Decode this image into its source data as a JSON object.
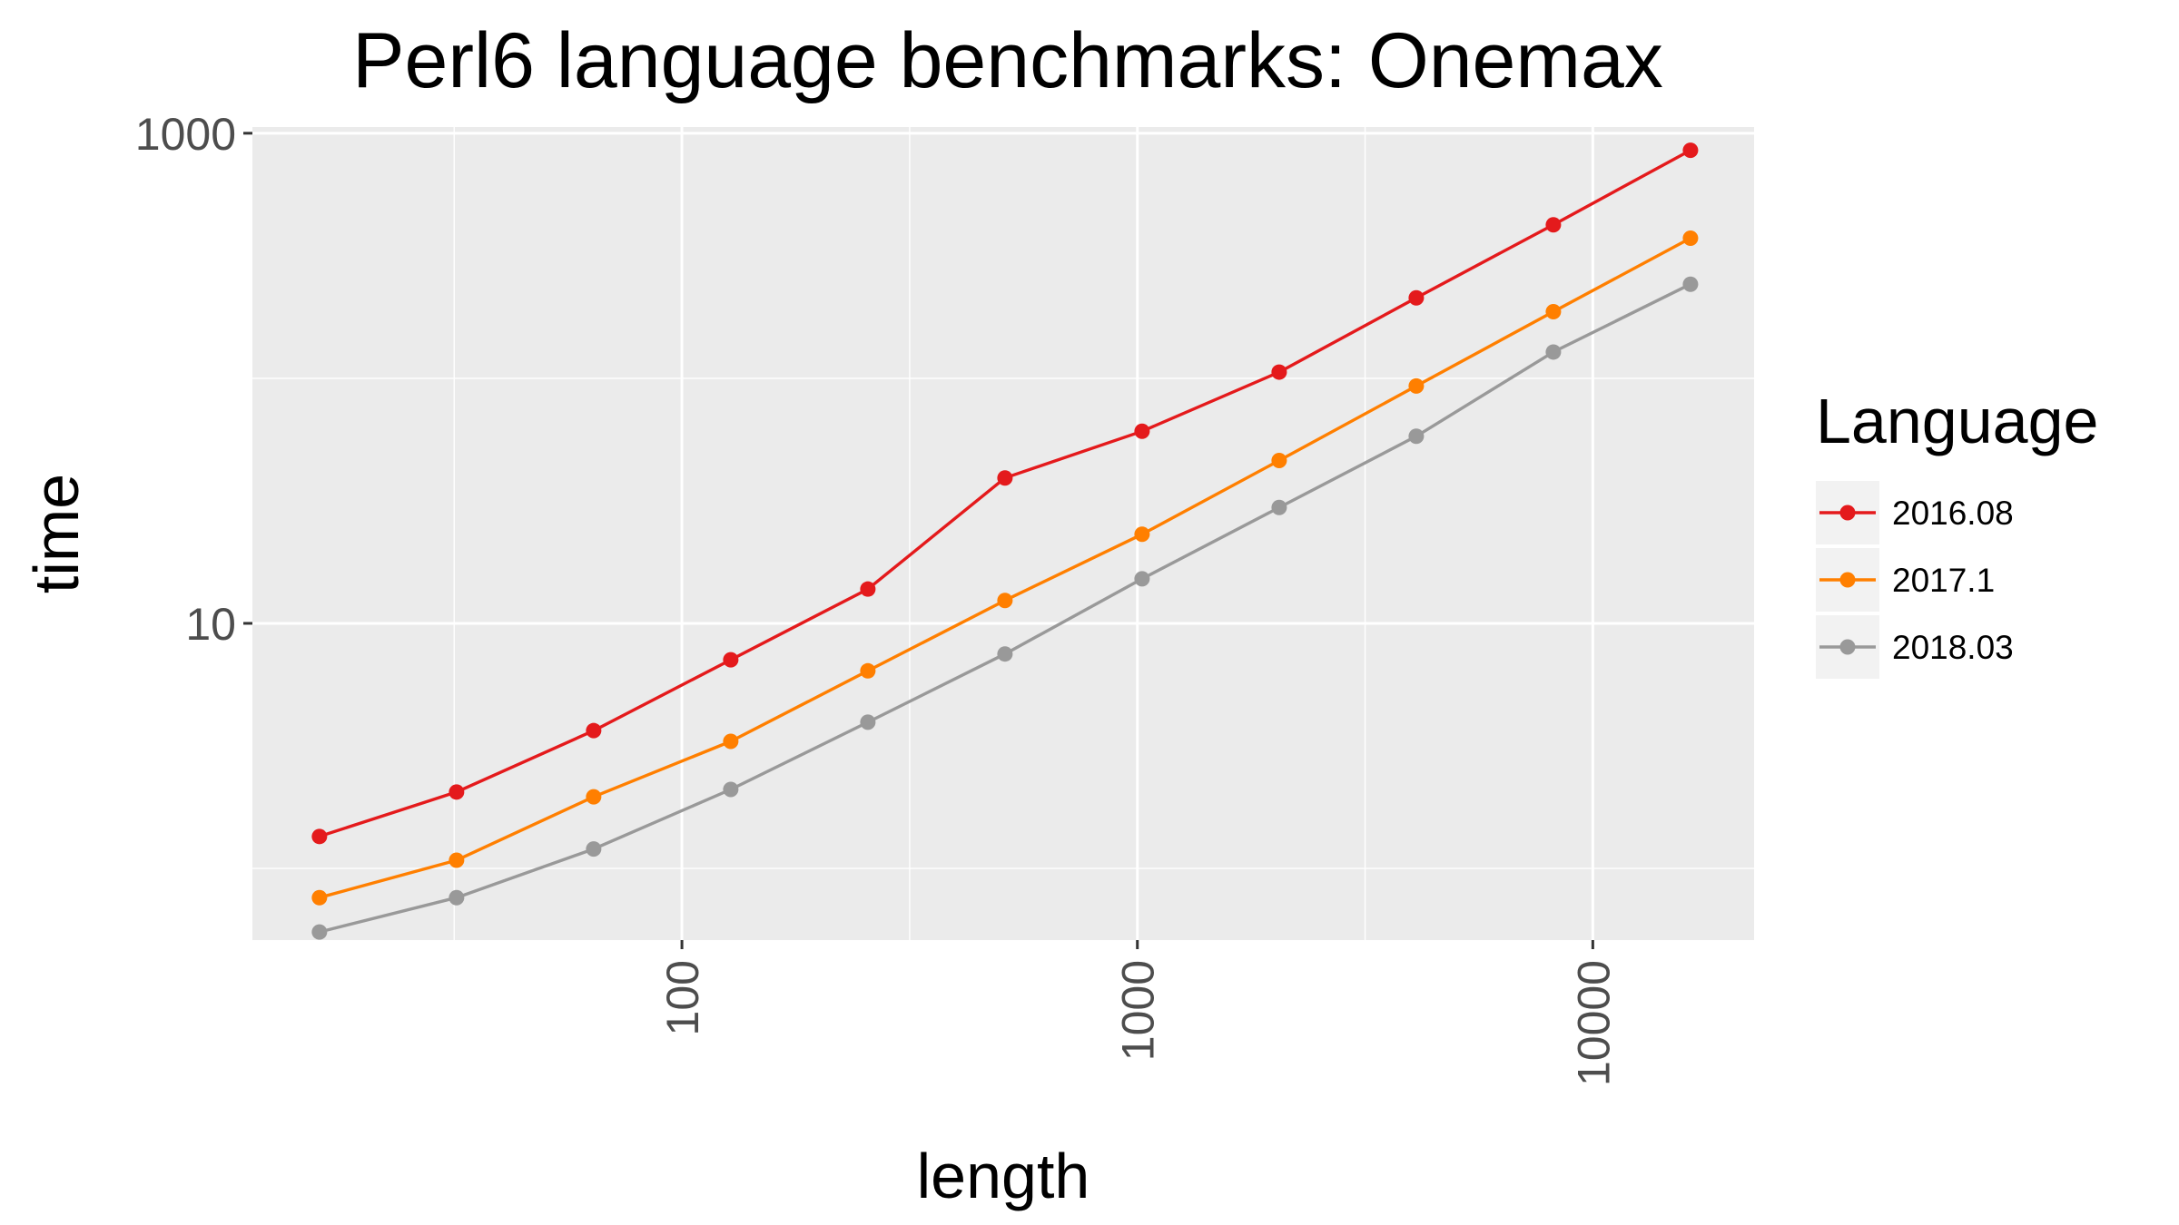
{
  "chart_data": {
    "type": "line",
    "title": "Perl6 language benchmarks: Onemax",
    "xlabel": "length",
    "ylabel": "time",
    "xscale": "log10",
    "yscale": "log10",
    "xlim": [
      11.4,
      22600
    ],
    "ylim": [
      0.51,
      1060
    ],
    "x_ticks": [
      100,
      1000,
      10000
    ],
    "x_tick_labels": [
      "100",
      "1000",
      "10000"
    ],
    "y_ticks": [
      10,
      1000
    ],
    "y_tick_labels": [
      "10",
      "1000"
    ],
    "x_tick_label_orientation": "vertical",
    "grid": true,
    "legend": {
      "title": "Language",
      "position": "right"
    },
    "x": [
      16,
      32,
      64,
      128,
      256,
      512,
      1024,
      2048,
      4096,
      8192,
      16384
    ],
    "series": [
      {
        "name": "2016.08",
        "color": "#e41a1c",
        "values": [
          1.35,
          2.05,
          3.65,
          7.1,
          13.8,
          39.2,
          60.8,
          106,
          213,
          423,
          852
        ]
      },
      {
        "name": "2017.1",
        "color": "#ff7f00",
        "values": [
          0.76,
          1.08,
          1.96,
          3.3,
          6.4,
          12.4,
          23.1,
          46.2,
          93,
          187,
          373
        ]
      },
      {
        "name": "2018.03",
        "color": "#999999",
        "values": [
          0.55,
          0.76,
          1.2,
          2.1,
          3.95,
          7.5,
          15.2,
          29.7,
          58,
          128,
          242
        ]
      }
    ]
  }
}
